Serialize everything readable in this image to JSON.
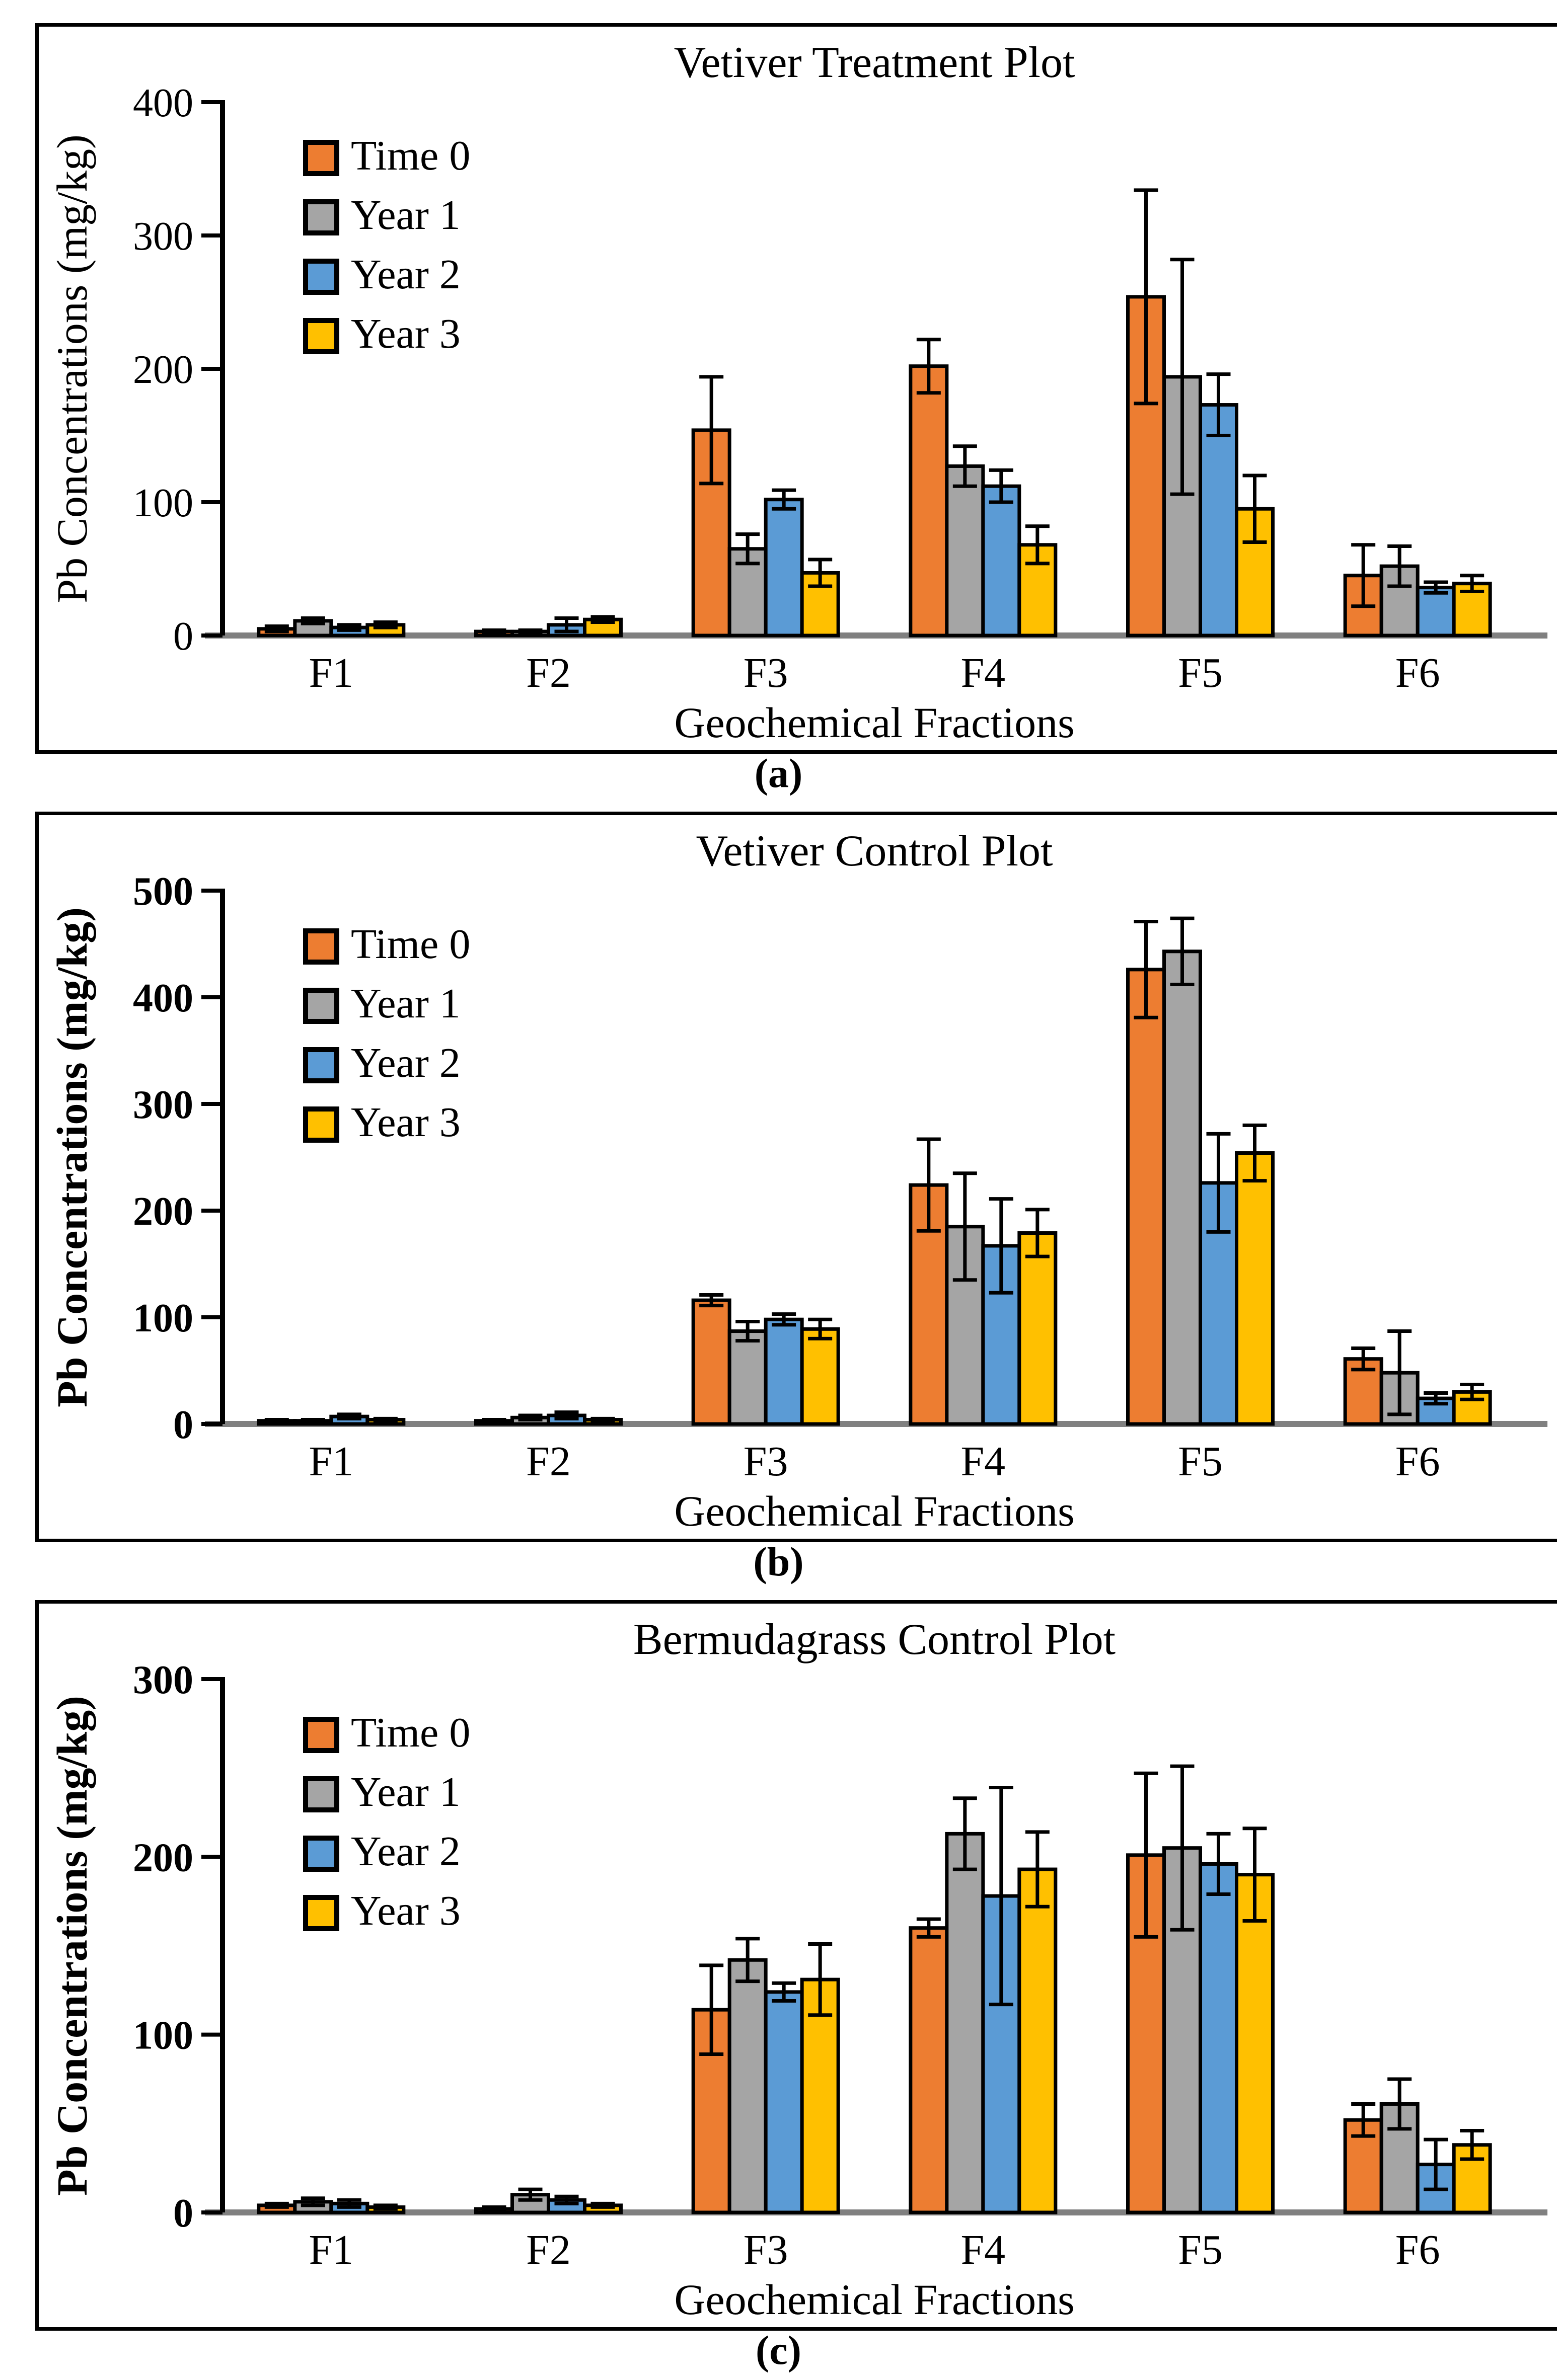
{
  "figure": {
    "background": "#ffffff",
    "series_labels": [
      "Time 0",
      "Year 1",
      "Year 2",
      "Year 3"
    ],
    "series_colors": [
      "#ED7D31",
      "#A5A5A5",
      "#5B9BD5",
      "#FFC000"
    ],
    "axis_color": "#000000",
    "baseline_color": "#808080"
  },
  "chart_data": [
    {
      "type": "bar",
      "caption": "(a)",
      "title": "Vetiver Treatment Plot",
      "xlabel": "Geochemical Fractions",
      "ylabel": "Pb Concentrations (mg/kg)",
      "ylim": [
        0,
        400
      ],
      "yticks": [
        0,
        100,
        200,
        300,
        400
      ],
      "categories": [
        "F1",
        "F2",
        "F3",
        "F4",
        "F5",
        "F6"
      ],
      "grid": false,
      "legend_position": "top-left-inside",
      "axis_bold": false,
      "series": [
        {
          "name": "Time 0",
          "color": "#ED7D31",
          "values": [
            5,
            3,
            154,
            202,
            254,
            45
          ],
          "errors": [
            2,
            1,
            40,
            20,
            80,
            23
          ]
        },
        {
          "name": "Year 1",
          "color": "#A5A5A5",
          "values": [
            11,
            3,
            65,
            127,
            194,
            52
          ],
          "errors": [
            2,
            1,
            11,
            15,
            88,
            15
          ]
        },
        {
          "name": "Year 2",
          "color": "#5B9BD5",
          "values": [
            6,
            8,
            102,
            112,
            173,
            36
          ],
          "errors": [
            2,
            5,
            7,
            12,
            23,
            4
          ]
        },
        {
          "name": "Year 3",
          "color": "#FFC000",
          "values": [
            8,
            12,
            47,
            68,
            95,
            39
          ],
          "errors": [
            2,
            2,
            10,
            14,
            25,
            6
          ]
        }
      ]
    },
    {
      "type": "bar",
      "caption": "(b)",
      "title": "Vetiver Control Plot",
      "xlabel": "Geochemical Fractions",
      "ylabel": "Pb Concentrations (mg/kg)",
      "ylim": [
        0,
        500
      ],
      "yticks": [
        0,
        100,
        200,
        300,
        400,
        500
      ],
      "categories": [
        "F1",
        "F2",
        "F3",
        "F4",
        "F5",
        "F6"
      ],
      "grid": false,
      "legend_position": "top-left-inside",
      "axis_bold": true,
      "series": [
        {
          "name": "Time 0",
          "color": "#ED7D31",
          "values": [
            3,
            3,
            116,
            224,
            426,
            61
          ],
          "errors": [
            1,
            1,
            5,
            43,
            45,
            10
          ]
        },
        {
          "name": "Year 1",
          "color": "#A5A5A5",
          "values": [
            3,
            6,
            87,
            185,
            443,
            48
          ],
          "errors": [
            1,
            2,
            9,
            50,
            31,
            39
          ]
        },
        {
          "name": "Year 2",
          "color": "#5B9BD5",
          "values": [
            7,
            8,
            98,
            167,
            226,
            24
          ],
          "errors": [
            2,
            3,
            5,
            44,
            46,
            5
          ]
        },
        {
          "name": "Year 3",
          "color": "#FFC000",
          "values": [
            4,
            4,
            89,
            179,
            254,
            30
          ],
          "errors": [
            1,
            1,
            9,
            22,
            26,
            7
          ]
        }
      ]
    },
    {
      "type": "bar",
      "caption": "(c)",
      "title": "Bermudagrass Control Plot",
      "xlabel": "Geochemical Fractions",
      "ylabel": "Pb Concentrations (mg/kg)",
      "ylim": [
        0,
        300
      ],
      "yticks": [
        0,
        100,
        200,
        300
      ],
      "categories": [
        "F1",
        "F2",
        "F3",
        "F4",
        "F5",
        "F6"
      ],
      "grid": false,
      "legend_position": "top-left-inside",
      "axis_bold": true,
      "series": [
        {
          "name": "Time 0",
          "color": "#ED7D31",
          "values": [
            4,
            2,
            114,
            160,
            201,
            52
          ],
          "errors": [
            1,
            1,
            25,
            5,
            46,
            9
          ]
        },
        {
          "name": "Year 1",
          "color": "#A5A5A5",
          "values": [
            6,
            10,
            142,
            213,
            205,
            61
          ],
          "errors": [
            2,
            3,
            12,
            20,
            46,
            14
          ]
        },
        {
          "name": "Year 2",
          "color": "#5B9BD5",
          "values": [
            5,
            7,
            124,
            178,
            196,
            27
          ],
          "errors": [
            2,
            2,
            5,
            61,
            17,
            14
          ]
        },
        {
          "name": "Year 3",
          "color": "#FFC000",
          "values": [
            3,
            4,
            131,
            193,
            190,
            38
          ],
          "errors": [
            1,
            1,
            20,
            21,
            26,
            8
          ]
        }
      ]
    }
  ]
}
